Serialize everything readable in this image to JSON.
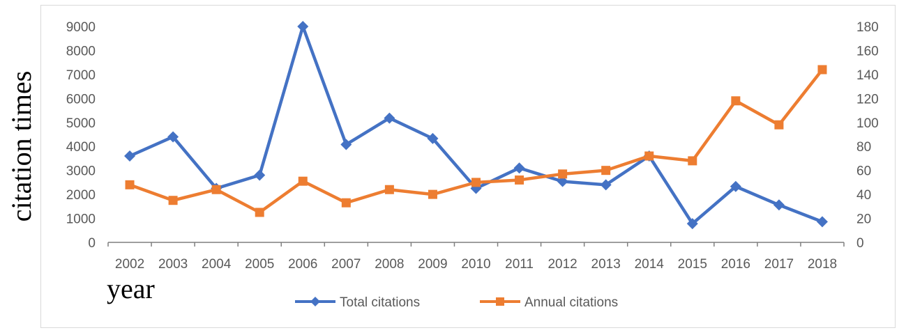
{
  "chart_data": {
    "type": "line",
    "title": "",
    "xlabel": "year",
    "ylabel": "citation times",
    "ylabel_right": "",
    "categories": [
      "2002",
      "2003",
      "2004",
      "2005",
      "2006",
      "2007",
      "2008",
      "2009",
      "2010",
      "2011",
      "2012",
      "2013",
      "2014",
      "2015",
      "2016",
      "2017",
      "2018"
    ],
    "ylim": [
      0,
      9000
    ],
    "y_ticks": [
      0,
      1000,
      2000,
      3000,
      4000,
      5000,
      6000,
      7000,
      8000,
      9000
    ],
    "ylim_right": [
      0,
      180
    ],
    "y_ticks_right": [
      0,
      20,
      40,
      60,
      80,
      100,
      120,
      140,
      160,
      180
    ],
    "grid": false,
    "legend_position": "bottom",
    "series": [
      {
        "name": "Total citations",
        "axis": "left",
        "color": "#4472C4",
        "marker": "diamond",
        "values": [
          3600,
          4400,
          2250,
          2800,
          9000,
          4080,
          5180,
          4330,
          2250,
          3100,
          2540,
          2400,
          3600,
          780,
          2330,
          1560,
          860
        ]
      },
      {
        "name": "Annual citations",
        "axis": "right",
        "color": "#ED7D31",
        "marker": "square",
        "values": [
          48,
          35,
          44,
          25,
          51,
          33,
          44,
          40,
          50,
          52,
          57,
          60,
          72,
          68,
          118,
          98,
          144
        ]
      }
    ]
  }
}
